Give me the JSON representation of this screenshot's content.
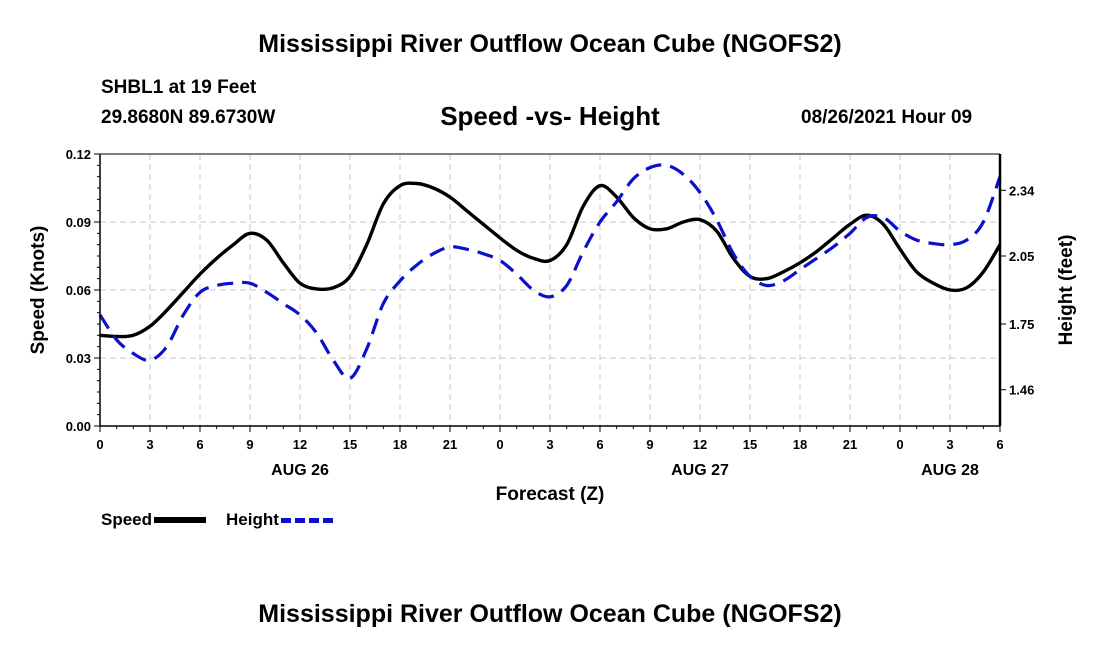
{
  "header": {
    "title": "Mississippi River Outflow Ocean Cube (NGOFS2)",
    "station": "SHBL1 at 19 Feet",
    "coords": "29.8680N  89.6730W",
    "subtitle": "Speed -vs- Height",
    "datetime": "08/26/2021 Hour 09"
  },
  "footer": {
    "title": "Mississippi River Outflow Ocean Cube (NGOFS2)"
  },
  "legend": {
    "speed_label": "Speed",
    "height_label": "Height"
  },
  "colors": {
    "speed": "#000000",
    "height": "#0a10cc",
    "grid": "#c8c8c8"
  },
  "chart_data": {
    "type": "line",
    "title": "Speed -vs- Height",
    "xlabel": "Forecast (Z)",
    "ylabel_left": "Speed (Knots)",
    "ylabel_right": "Height (feet)",
    "x_range": [
      0,
      54
    ],
    "x_ticks": [
      0,
      3,
      6,
      9,
      12,
      15,
      18,
      21,
      24,
      27,
      30,
      33,
      36,
      39,
      42,
      45,
      48,
      51,
      54
    ],
    "x_tick_labels": [
      "0",
      "3",
      "6",
      "9",
      "12",
      "15",
      "18",
      "21",
      "0",
      "3",
      "6",
      "9",
      "12",
      "15",
      "18",
      "21",
      "0",
      "3",
      "6"
    ],
    "date_labels": [
      {
        "x": 12,
        "label": "AUG 26"
      },
      {
        "x": 36,
        "label": "AUG 27"
      },
      {
        "x": 51,
        "label": "AUG 28"
      }
    ],
    "ylim_left": [
      0,
      0.12
    ],
    "y_left_ticks": [
      0,
      0.03,
      0.06,
      0.09,
      0.12
    ],
    "y_left_tick_labels": [
      "0.00",
      "0.03",
      "0.06",
      "0.09",
      "0.12"
    ],
    "ylim_right": [
      1.3,
      2.5
    ],
    "y_right_ticks": [
      1.46,
      1.75,
      2.05,
      2.34
    ],
    "y_right_tick_labels": [
      "1.46",
      "1.75",
      "2.05",
      "2.34"
    ],
    "series": [
      {
        "name": "Speed",
        "axis": "left",
        "style": "solid",
        "x": [
          0,
          1,
          2,
          3,
          4,
          5,
          6,
          7,
          8,
          9,
          10,
          11,
          12,
          13,
          14,
          15,
          16,
          17,
          18,
          19,
          20,
          21,
          22,
          23,
          24,
          25,
          26,
          27,
          28,
          29,
          30,
          31,
          32,
          33,
          34,
          35,
          36,
          37,
          38,
          39,
          40,
          41,
          42,
          43,
          44,
          45,
          46,
          47,
          48,
          49,
          50,
          51,
          52,
          53,
          54
        ],
        "values": [
          0.04,
          0.0395,
          0.04,
          0.044,
          0.051,
          0.059,
          0.067,
          0.074,
          0.08,
          0.085,
          0.082,
          0.072,
          0.063,
          0.0605,
          0.061,
          0.066,
          0.08,
          0.098,
          0.106,
          0.107,
          0.105,
          0.101,
          0.095,
          0.089,
          0.083,
          0.0775,
          0.074,
          0.073,
          0.08,
          0.097,
          0.106,
          0.101,
          0.092,
          0.087,
          0.087,
          0.09,
          0.091,
          0.086,
          0.074,
          0.066,
          0.065,
          0.068,
          0.072,
          0.077,
          0.083,
          0.089,
          0.093,
          0.089,
          0.078,
          0.068,
          0.063,
          0.06,
          0.061,
          0.068,
          0.08
        ]
      },
      {
        "name": "Height",
        "axis": "right",
        "style": "dashed",
        "x": [
          0,
          1,
          2,
          3,
          4,
          5,
          6,
          7,
          8,
          9,
          10,
          11,
          12,
          13,
          14,
          15,
          16,
          17,
          18,
          19,
          20,
          21,
          22,
          23,
          24,
          25,
          26,
          27,
          28,
          29,
          30,
          31,
          32,
          33,
          34,
          35,
          36,
          37,
          38,
          39,
          40,
          41,
          42,
          43,
          44,
          45,
          46,
          47,
          48,
          49,
          50,
          51,
          52,
          53,
          54
        ],
        "values": [
          1.79,
          1.68,
          1.62,
          1.59,
          1.65,
          1.79,
          1.89,
          1.92,
          1.93,
          1.93,
          1.89,
          1.84,
          1.79,
          1.71,
          1.59,
          1.51,
          1.64,
          1.84,
          1.94,
          2.01,
          2.06,
          2.09,
          2.08,
          2.06,
          2.03,
          1.97,
          1.9,
          1.87,
          1.92,
          2.07,
          2.2,
          2.29,
          2.39,
          2.44,
          2.45,
          2.41,
          2.33,
          2.21,
          2.06,
          1.96,
          1.92,
          1.94,
          1.99,
          2.04,
          2.09,
          2.15,
          2.22,
          2.22,
          2.16,
          2.12,
          2.105,
          2.1,
          2.12,
          2.2,
          2.4
        ]
      }
    ]
  }
}
